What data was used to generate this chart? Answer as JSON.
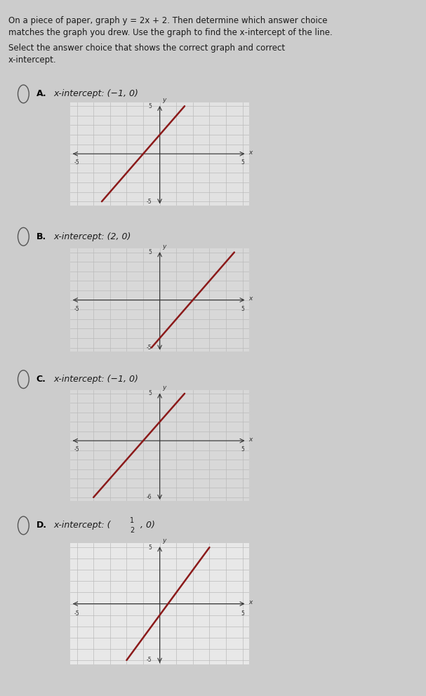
{
  "title_line1": "On a piece of paper, graph y = 2x + 2. Then determine which answer choice",
  "title_line2": "matches the graph you drew. Use the graph to find the x-intercept of the line.",
  "subtitle_line1": "Select the answer choice that shows the correct graph and correct",
  "subtitle_line2": "x-intercept.",
  "options": [
    {
      "label": "A",
      "intercept_text": "x-intercept: (−1, 0)",
      "xlim": [
        -5,
        5
      ],
      "ylim": [
        -5,
        5
      ],
      "slope": 2,
      "intercept": 2,
      "line_color": "#8B1a1a",
      "grid_color": "#bbbbbb",
      "bg_color": "#e2e2e2",
      "x_line_start": -3.5,
      "x_line_end": 1.5,
      "xtick_labels": [
        "-5",
        "5"
      ],
      "ytick_labels": [
        "5",
        "-5"
      ]
    },
    {
      "label": "B",
      "intercept_text": "x-intercept: (2, 0)",
      "xlim": [
        -5,
        5
      ],
      "ylim": [
        -5,
        5
      ],
      "slope": 2,
      "intercept": -4,
      "line_color": "#8B1a1a",
      "grid_color": "#bbbbbb",
      "bg_color": "#d8d8d8",
      "x_line_start": -0.5,
      "x_line_end": 4.5,
      "xtick_labels": [
        "-5",
        "5"
      ],
      "ytick_labels": [
        "5",
        "-5"
      ]
    },
    {
      "label": "C",
      "intercept_text": "x-intercept: (−1, 0)",
      "xlim": [
        -5,
        5
      ],
      "ylim": [
        -6,
        5
      ],
      "slope": 2,
      "intercept": 2,
      "line_color": "#8B1a1a",
      "grid_color": "#bbbbbb",
      "bg_color": "#d8d8d8",
      "x_line_start": -4,
      "x_line_end": 1.5,
      "xtick_labels": [
        "-5",
        "5"
      ],
      "ytick_labels": [
        "5",
        "-6"
      ]
    },
    {
      "label": "D",
      "intercept_text": "x-intercept: (½, 0)",
      "intercept_text_d": true,
      "xlim": [
        -5,
        5
      ],
      "ylim": [
        -5,
        5
      ],
      "slope": 2,
      "intercept": -1,
      "line_color": "#8B1a1a",
      "grid_color": "#bbbbbb",
      "bg_color": "#e8e8e8",
      "x_line_start": -2,
      "x_line_end": 3,
      "xtick_labels": [
        "-5",
        "5"
      ],
      "ytick_labels": [
        "5",
        "-5"
      ]
    }
  ],
  "background_color": "#cccccc",
  "separator_color": "#999999",
  "text_color": "#1a1a1a",
  "bold_color": "#000000"
}
